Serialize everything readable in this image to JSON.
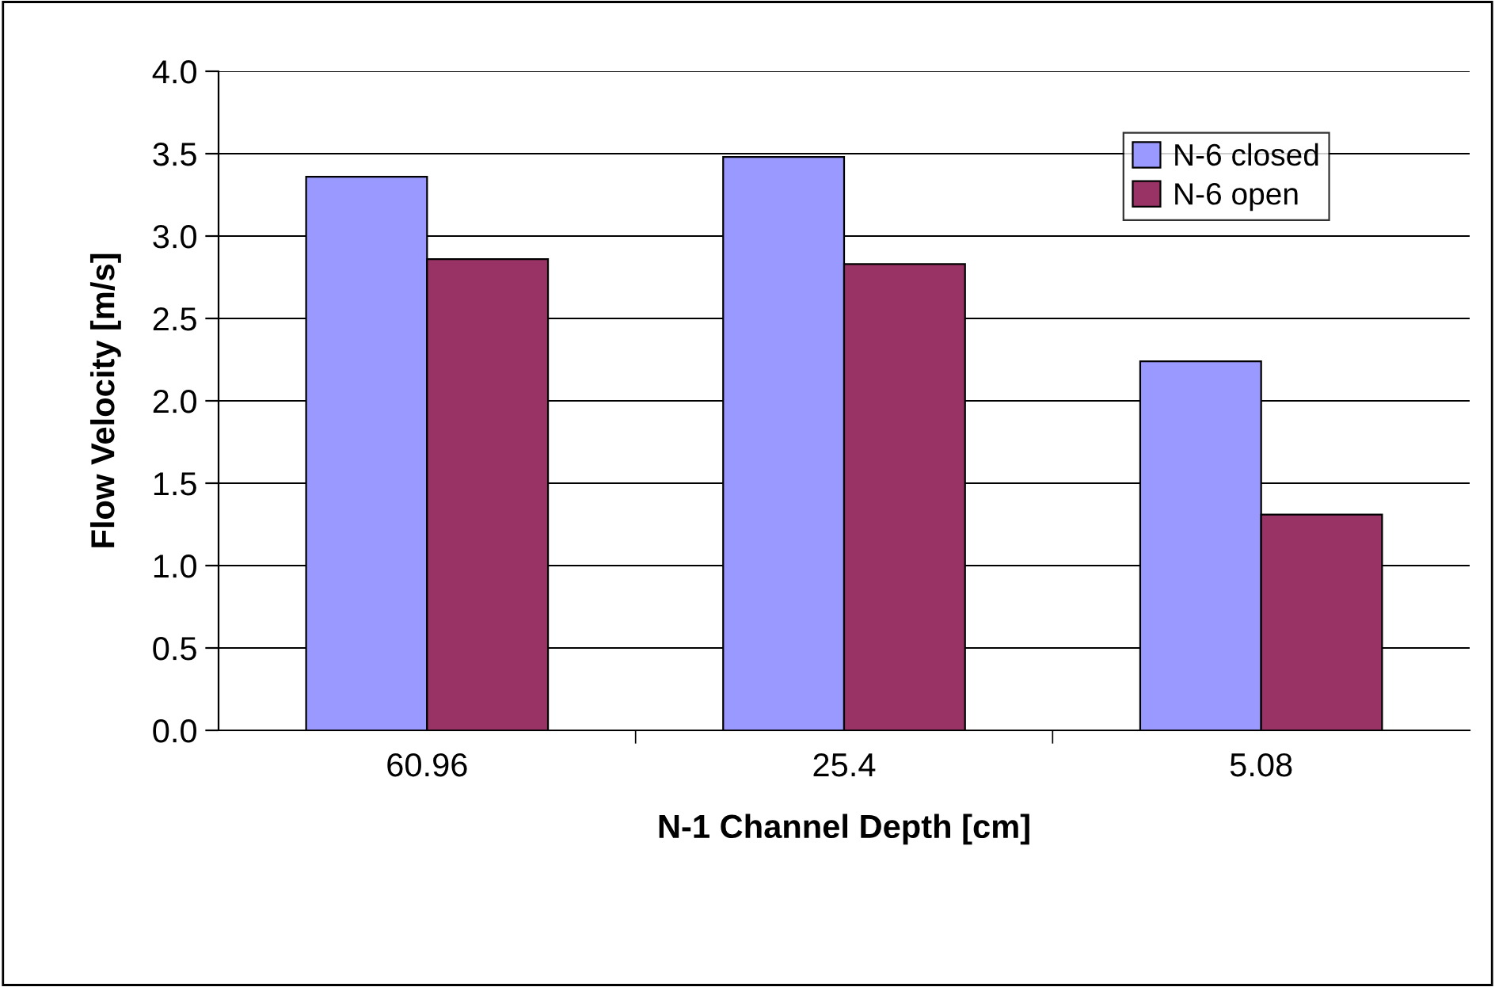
{
  "chart_data": {
    "type": "bar",
    "xlabel": "N-1 Channel Depth [cm]",
    "ylabel": "Flow Velocity [m/s]",
    "categories": [
      "60.96",
      "25.4",
      "5.08"
    ],
    "series": [
      {
        "name": "N-6 closed",
        "color": "#9999ff",
        "values": [
          3.36,
          3.48,
          2.24
        ]
      },
      {
        "name": "N-6 open",
        "color": "#993366",
        "values": [
          2.86,
          2.83,
          1.31
        ]
      }
    ],
    "ylim": [
      0,
      4.0
    ],
    "yticks": [
      {
        "value": 0,
        "label": "0.0"
      },
      {
        "value": 0.5,
        "label": "0.5"
      },
      {
        "value": 1.0,
        "label": "1.0"
      },
      {
        "value": 1.5,
        "label": "1.5"
      },
      {
        "value": 2.0,
        "label": "2.0"
      },
      {
        "value": 2.5,
        "label": "2.5"
      },
      {
        "value": 3.0,
        "label": "3.0"
      },
      {
        "value": 3.5,
        "label": "3.5"
      },
      {
        "value": 4.0,
        "label": "4.0"
      }
    ],
    "grid": "y",
    "legend": "top right"
  }
}
